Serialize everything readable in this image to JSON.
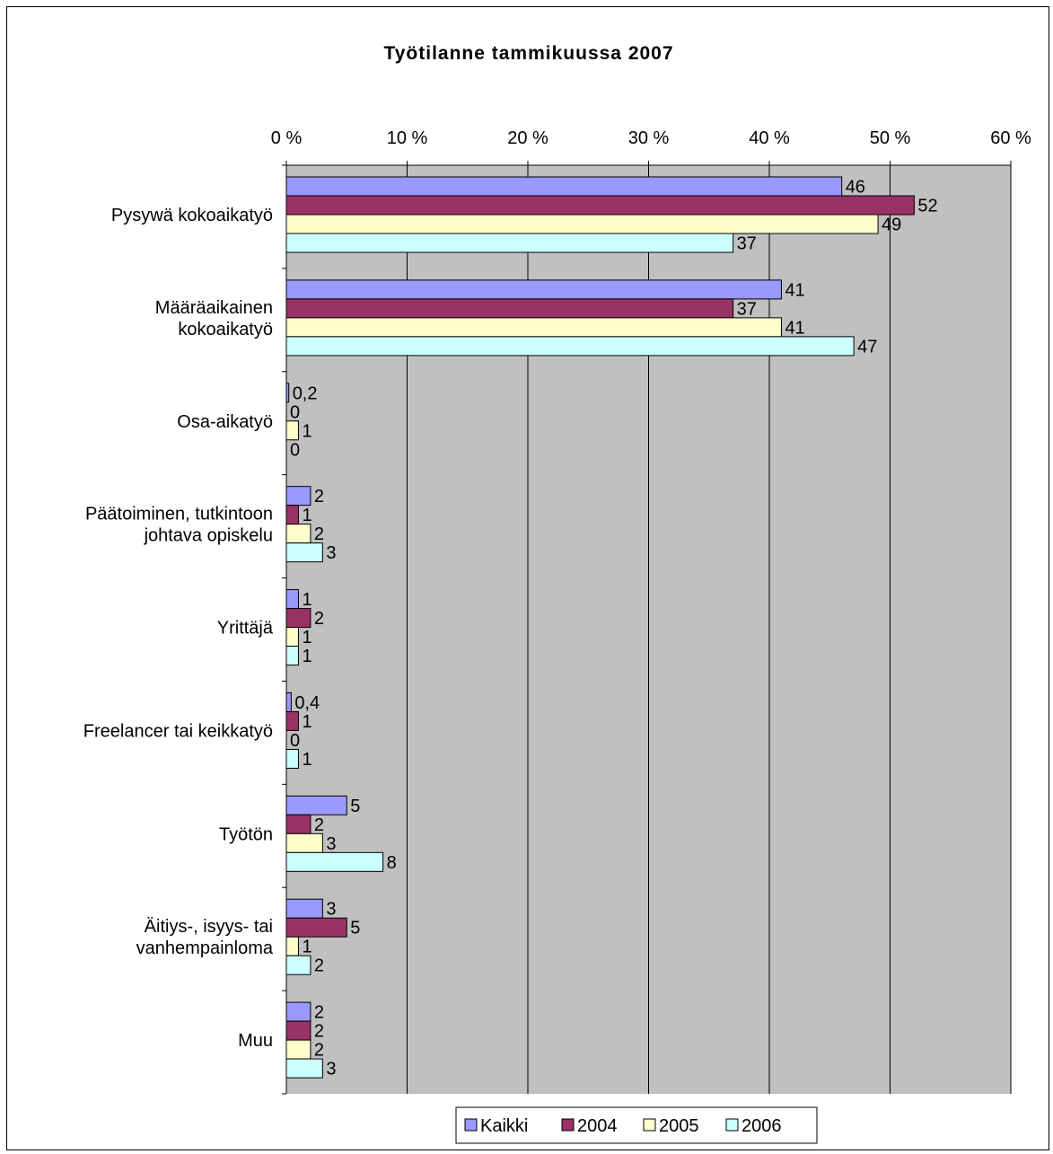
{
  "chart_data": {
    "type": "bar",
    "orientation": "horizontal",
    "title": "Työtilanne tammikuussa 2007",
    "xlabel": "",
    "ylabel": "",
    "xlim": [
      0,
      60
    ],
    "x_ticks": [
      "0 %",
      "10 %",
      "20 %",
      "30 %",
      "40 %",
      "50 %",
      "60 %"
    ],
    "x_tick_values": [
      0,
      10,
      20,
      30,
      40,
      50,
      60
    ],
    "x_axis_position": "top",
    "grid": true,
    "legend_position": "bottom",
    "categories": [
      [
        "Pysywä kokoaikatyö"
      ],
      [
        "Määräaikainen",
        "kokoaikatyö"
      ],
      [
        "Osa-aikatyö"
      ],
      [
        "Päätoiminen, tutkintoon",
        "johtava opiskelu"
      ],
      [
        "Yrittäjä"
      ],
      [
        "Freelancer tai keikkatyö"
      ],
      [
        "Työtön"
      ],
      [
        "Äitiys-, isyys- tai",
        "vanhempainloma"
      ],
      [
        "Muu"
      ]
    ],
    "series": [
      {
        "name": "Kaikki",
        "color": "#9999ff",
        "values": [
          46,
          41,
          0.2,
          2,
          1,
          0.4,
          5,
          3,
          2
        ],
        "labels": [
          "46",
          "41",
          "0,2",
          "2",
          "1",
          "0,4",
          "5",
          "3",
          "2"
        ]
      },
      {
        "name": "2004",
        "color": "#993366",
        "values": [
          52,
          37,
          0,
          1,
          2,
          1,
          2,
          5,
          2
        ],
        "labels": [
          "52",
          "37",
          "0",
          "1",
          "2",
          "1",
          "2",
          "5",
          "2"
        ]
      },
      {
        "name": "2005",
        "color": "#ffffcc",
        "values": [
          49,
          41,
          1,
          2,
          1,
          0,
          3,
          1,
          2
        ],
        "labels": [
          "49",
          "41",
          "1",
          "2",
          "1",
          "0",
          "3",
          "1",
          "2"
        ]
      },
      {
        "name": "2006",
        "color": "#ccffff",
        "values": [
          37,
          47,
          0,
          3,
          1,
          1,
          8,
          2,
          3
        ],
        "labels": [
          "37",
          "47",
          "0",
          "3",
          "1",
          "1",
          "8",
          "2",
          "3"
        ]
      }
    ],
    "plot_background": "#c0c0c0"
  }
}
